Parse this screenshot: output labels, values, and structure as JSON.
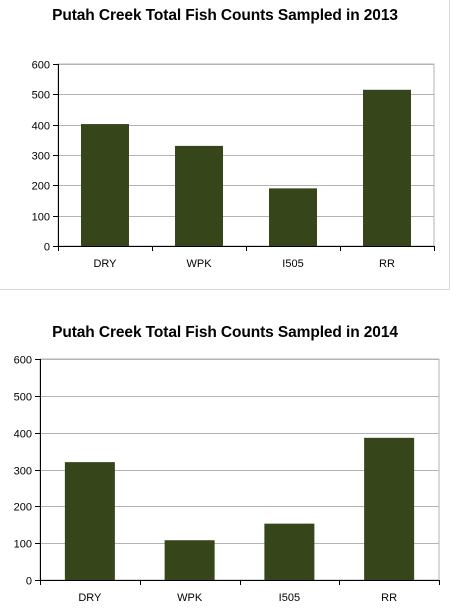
{
  "colors": {
    "bar": "#36461a",
    "grid": "#b3b3b3",
    "axis": "#000000"
  },
  "chart_data": [
    {
      "type": "bar",
      "title": "Putah Creek Total Fish Counts Sampled in 2013",
      "categories": [
        "DRY",
        "WPK",
        "I505",
        "RR"
      ],
      "values": [
        402,
        330,
        190,
        515
      ],
      "ylim": [
        0,
        600
      ],
      "yticks": [
        0,
        100,
        200,
        300,
        400,
        500,
        600
      ],
      "xlabel": "",
      "ylabel": "",
      "grid": true,
      "legend": "none"
    },
    {
      "type": "bar",
      "title": "Putah Creek Total Fish Counts Sampled in 2014",
      "categories": [
        "DRY",
        "WPK",
        "I505",
        "RR"
      ],
      "values": [
        320,
        108,
        153,
        386
      ],
      "ylim": [
        0,
        600
      ],
      "yticks": [
        0,
        100,
        200,
        300,
        400,
        500,
        600
      ],
      "xlabel": "",
      "ylabel": "",
      "grid": true,
      "legend": "none"
    }
  ]
}
